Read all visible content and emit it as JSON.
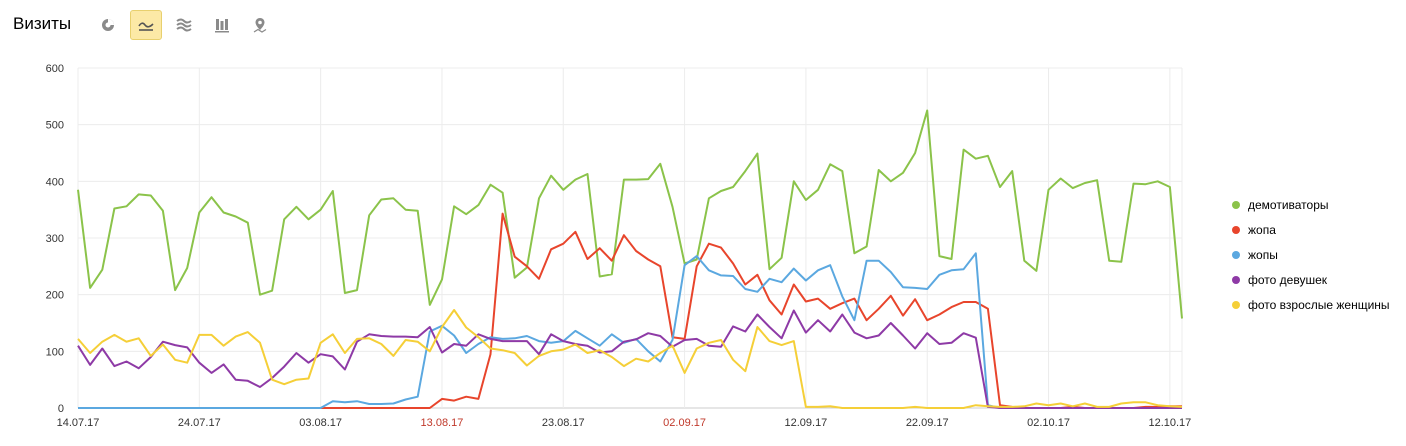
{
  "header": {
    "title": "Визиты"
  },
  "toolbar": {
    "buttons": [
      {
        "name": "pie-chart-icon",
        "active": false
      },
      {
        "name": "line-chart-icon",
        "active": true
      },
      {
        "name": "area-chart-icon",
        "active": false
      },
      {
        "name": "bar-chart-icon",
        "active": false
      },
      {
        "name": "map-icon",
        "active": false
      }
    ]
  },
  "chart_data": {
    "type": "line",
    "ylim": [
      0,
      600
    ],
    "yticks": [
      "0",
      "100",
      "200",
      "300",
      "400",
      "500",
      "600"
    ],
    "xticks": [
      {
        "label": "14.07.17",
        "index": 0,
        "weekend": false
      },
      {
        "label": "24.07.17",
        "index": 10,
        "weekend": false
      },
      {
        "label": "03.08.17",
        "index": 20,
        "weekend": false
      },
      {
        "label": "13.08.17",
        "index": 30,
        "weekend": true
      },
      {
        "label": "23.08.17",
        "index": 40,
        "weekend": false
      },
      {
        "label": "02.09.17",
        "index": 50,
        "weekend": true
      },
      {
        "label": "12.09.17",
        "index": 60,
        "weekend": false
      },
      {
        "label": "22.09.17",
        "index": 70,
        "weekend": false
      },
      {
        "label": "02.10.17",
        "index": 80,
        "weekend": false
      },
      {
        "label": "12.10.17",
        "index": 90,
        "weekend": false
      }
    ],
    "grid": true,
    "legend_position": "right",
    "series": [
      {
        "name": "демотиваторы",
        "color": "#8bc34a",
        "values": [
          385,
          212,
          244,
          352,
          356,
          377,
          375,
          348,
          208,
          247,
          345,
          372,
          345,
          338,
          327,
          200,
          207,
          333,
          355,
          333,
          350,
          383,
          203,
          208,
          340,
          368,
          370,
          350,
          348,
          182,
          227,
          356,
          342,
          358,
          394,
          380,
          230,
          248,
          370,
          410,
          385,
          403,
          413,
          232,
          236,
          403,
          403,
          404,
          431,
          355,
          255,
          262,
          370,
          383,
          390,
          418,
          449,
          245,
          265,
          400,
          367,
          385,
          430,
          418,
          273,
          285,
          420,
          400,
          415,
          450,
          525,
          268,
          263,
          456,
          440,
          445,
          390,
          418,
          260,
          242,
          385,
          405,
          388,
          397,
          402,
          260,
          258,
          396,
          395,
          400,
          390,
          158
        ]
      },
      {
        "name": "жопа",
        "color": "#e8452c",
        "values": [
          0,
          0,
          0,
          0,
          0,
          0,
          0,
          0,
          0,
          0,
          0,
          0,
          0,
          0,
          0,
          0,
          0,
          0,
          0,
          0,
          0,
          0,
          0,
          0,
          0,
          0,
          0,
          0,
          0,
          0,
          16,
          13,
          20,
          16,
          95,
          343,
          267,
          250,
          228,
          280,
          290,
          311,
          263,
          282,
          260,
          305,
          277,
          262,
          250,
          125,
          122,
          250,
          290,
          283,
          255,
          218,
          235,
          190,
          165,
          218,
          188,
          193,
          175,
          185,
          193,
          155,
          175,
          198,
          163,
          192,
          155,
          165,
          178,
          187,
          187,
          175,
          5,
          2,
          0,
          0,
          0,
          0,
          2,
          0,
          0,
          0,
          0,
          0,
          2,
          2,
          3,
          3
        ]
      },
      {
        "name": "жопы",
        "color": "#5ba8e0",
        "values": [
          0,
          0,
          0,
          0,
          0,
          0,
          0,
          0,
          0,
          0,
          0,
          0,
          0,
          0,
          0,
          0,
          0,
          0,
          0,
          0,
          0,
          12,
          10,
          12,
          7,
          7,
          8,
          15,
          20,
          135,
          145,
          128,
          97,
          113,
          125,
          122,
          123,
          127,
          118,
          115,
          118,
          136,
          123,
          110,
          130,
          115,
          122,
          100,
          82,
          120,
          252,
          268,
          243,
          234,
          233,
          210,
          205,
          228,
          222,
          246,
          225,
          243,
          252,
          197,
          155,
          260,
          260,
          240,
          213,
          212,
          210,
          235,
          243,
          245,
          273,
          5,
          0,
          0,
          0,
          0,
          0,
          0,
          0,
          0,
          0,
          0,
          0,
          0,
          0,
          0,
          0,
          0
        ]
      },
      {
        "name": "фото девушек",
        "color": "#8e3aa6",
        "values": [
          110,
          76,
          105,
          74,
          82,
          70,
          90,
          117,
          111,
          107,
          80,
          62,
          77,
          50,
          48,
          37,
          53,
          73,
          97,
          80,
          95,
          91,
          68,
          117,
          130,
          127,
          126,
          126,
          125,
          143,
          98,
          113,
          110,
          130,
          122,
          118,
          118,
          118,
          95,
          130,
          118,
          113,
          110,
          98,
          100,
          117,
          121,
          132,
          127,
          108,
          120,
          122,
          110,
          108,
          144,
          135,
          165,
          143,
          123,
          172,
          133,
          155,
          135,
          165,
          133,
          123,
          128,
          150,
          128,
          105,
          132,
          113,
          115,
          132,
          124,
          2,
          0,
          0,
          0,
          0,
          0,
          0,
          0,
          0,
          0,
          0,
          0,
          0,
          0,
          0,
          0,
          0
        ]
      },
      {
        "name": "фото взрослые женщины",
        "color": "#f5cf38",
        "values": [
          122,
          97,
          117,
          129,
          117,
          123,
          92,
          112,
          85,
          80,
          129,
          129,
          110,
          126,
          134,
          115,
          50,
          42,
          50,
          52,
          115,
          130,
          97,
          122,
          123,
          113,
          92,
          120,
          117,
          100,
          143,
          173,
          142,
          125,
          105,
          102,
          97,
          75,
          92,
          100,
          103,
          112,
          97,
          102,
          90,
          74,
          87,
          82,
          97,
          110,
          62,
          105,
          115,
          120,
          85,
          65,
          143,
          118,
          111,
          118,
          2,
          2,
          3,
          0,
          0,
          0,
          0,
          0,
          0,
          2,
          0,
          0,
          0,
          0,
          5,
          3,
          2,
          2,
          3,
          8,
          5,
          8,
          3,
          8,
          2,
          2,
          8,
          10,
          10,
          5,
          3,
          2
        ]
      }
    ]
  }
}
